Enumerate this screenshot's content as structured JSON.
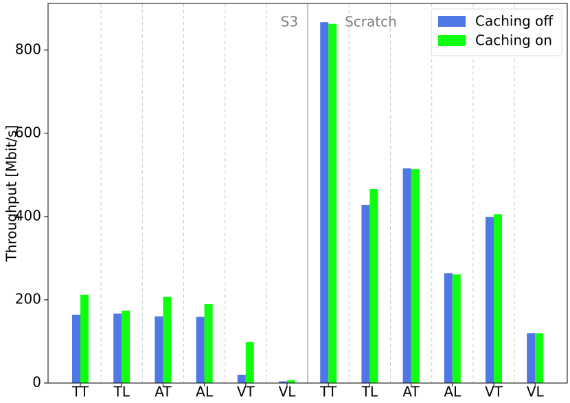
{
  "chart_data": {
    "type": "bar",
    "y_label": "Throughput [Mbit/s]",
    "categories": [
      "TT",
      "TL",
      "AT",
      "AL",
      "VT",
      "VL",
      "TT",
      "TL",
      "AT",
      "AL",
      "VT",
      "VL"
    ],
    "series": [
      {
        "name": "Caching off",
        "color": "#4f77e6",
        "values": [
          164,
          167,
          160,
          159,
          20,
          4,
          867,
          428,
          516,
          264,
          399,
          120
        ]
      },
      {
        "name": "Caching on",
        "color": "#10ff10",
        "values": [
          212,
          174,
          207,
          190,
          99,
          7,
          863,
          466,
          514,
          261,
          406,
          120
        ]
      }
    ],
    "annotations": [
      "S3",
      "Scratch"
    ],
    "ylim": [
      0,
      912
    ],
    "yticks": [
      0,
      200,
      400,
      600,
      800
    ],
    "legend": "upper right"
  }
}
